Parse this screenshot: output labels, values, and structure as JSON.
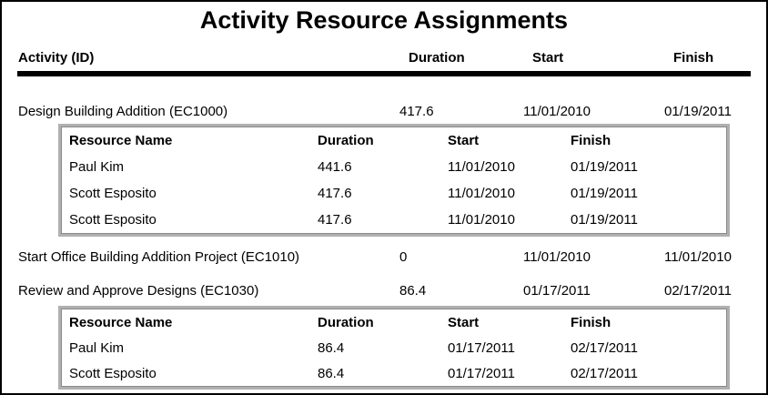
{
  "report": {
    "title": "Activity Resource Assignments",
    "columns": [
      "Activity (ID)",
      "Duration",
      "Start",
      "Finish"
    ],
    "resource_columns": [
      "Resource Name",
      "Duration",
      "Start",
      "Finish"
    ],
    "colors": {
      "text": "#000000",
      "page_border": "#000000",
      "header_rule": "#000000",
      "resource_table_border": "#b0b0b0",
      "resource_table_inner_line": "#8a8a8a"
    },
    "activities": [
      {
        "name": "Design Building Addition (EC1000)",
        "duration": "417.6",
        "start": "11/01/2010",
        "finish": "01/19/2011",
        "resources": [
          {
            "name": "Paul Kim",
            "duration": "441.6",
            "start": "11/01/2010",
            "finish": "01/19/2011"
          },
          {
            "name": "Scott Esposito",
            "duration": "417.6",
            "start": "11/01/2010",
            "finish": "01/19/2011"
          },
          {
            "name": "Scott Esposito",
            "duration": "417.6",
            "start": "11/01/2010",
            "finish": "01/19/2011"
          }
        ]
      },
      {
        "name": "Start Office Building Addition Project (EC1010)",
        "duration": "0",
        "start": "11/01/2010",
        "finish": "11/01/2010",
        "resources": []
      },
      {
        "name": "Review and Approve Designs (EC1030)",
        "duration": "86.4",
        "start": "01/17/2011",
        "finish": "02/17/2011",
        "resources": [
          {
            "name": "Paul Kim",
            "duration": "86.4",
            "start": "01/17/2011",
            "finish": "02/17/2011"
          },
          {
            "name": "Scott Esposito",
            "duration": "86.4",
            "start": "01/17/2011",
            "finish": "02/17/2011"
          }
        ]
      }
    ]
  }
}
